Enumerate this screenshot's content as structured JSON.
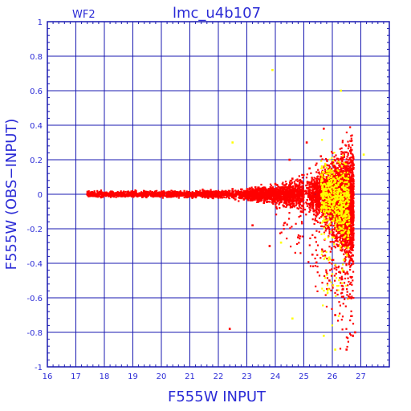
{
  "chart_data": {
    "type": "scatter",
    "title": "lmc_u4b107",
    "panel_label": "WF2",
    "xlabel": "F555W INPUT",
    "ylabel": "F555W (OBS−INPUT)",
    "xlim": [
      16,
      28
    ],
    "ylim": [
      -1,
      1
    ],
    "x_ticks": [
      16,
      17,
      18,
      19,
      20,
      21,
      22,
      23,
      24,
      25,
      26,
      27
    ],
    "y_ticks": [
      -1,
      -0.8,
      -0.6,
      -0.4,
      -0.2,
      0,
      0.2,
      0.4,
      0.6,
      0.8,
      1
    ],
    "grid": true,
    "series": [
      {
        "color": "#ff0000",
        "points": [
          [
            17.4,
            0.0
          ],
          [
            17.6,
            0.01
          ],
          [
            17.8,
            -0.01
          ],
          [
            18.0,
            0.0
          ],
          [
            18.3,
            0.01
          ],
          [
            18.6,
            -0.01
          ],
          [
            19.0,
            0.0
          ],
          [
            19.4,
            0.01
          ],
          [
            19.8,
            0.0
          ],
          [
            20.2,
            -0.01
          ],
          [
            20.6,
            0.01
          ],
          [
            21.0,
            -0.01
          ],
          [
            21.5,
            0.02
          ],
          [
            22.0,
            -0.02
          ],
          [
            22.5,
            0.03
          ],
          [
            22.9,
            -0.03
          ],
          [
            23.3,
            0.04
          ],
          [
            23.6,
            -0.05
          ],
          [
            24.0,
            0.06
          ],
          [
            24.3,
            -0.07
          ],
          [
            24.6,
            0.09
          ],
          [
            24.9,
            -0.1
          ],
          [
            25.2,
            0.15
          ],
          [
            25.4,
            -0.15
          ],
          [
            25.6,
            0.22
          ],
          [
            25.8,
            -0.2
          ],
          [
            26.0,
            0.18
          ],
          [
            26.2,
            -0.3
          ],
          [
            26.4,
            -0.45
          ],
          [
            26.6,
            -0.6
          ],
          [
            26.8,
            -0.8
          ],
          [
            25.9,
            -0.5
          ],
          [
            25.3,
            -0.35
          ],
          [
            24.8,
            -0.25
          ],
          [
            23.2,
            -0.18
          ],
          [
            22.4,
            -0.78
          ],
          [
            25.7,
            0.38
          ],
          [
            26.1,
            -0.7
          ],
          [
            26.5,
            -0.9
          ],
          [
            24.5,
            0.2
          ],
          [
            25.1,
            0.3
          ],
          [
            23.8,
            -0.3
          ]
        ]
      },
      {
        "color": "#ffff00",
        "points": [
          [
            25.8,
            0.05
          ],
          [
            26.0,
            -0.02
          ],
          [
            26.1,
            0.08
          ],
          [
            26.2,
            -0.1
          ],
          [
            26.3,
            -0.2
          ],
          [
            26.0,
            -0.25
          ],
          [
            25.9,
            0.12
          ],
          [
            26.4,
            -0.38
          ],
          [
            26.1,
            -0.9
          ],
          [
            24.6,
            -0.72
          ],
          [
            23.9,
            0.72
          ],
          [
            22.5,
            0.3
          ],
          [
            27.1,
            0.23
          ],
          [
            25.7,
            -0.82
          ],
          [
            26.3,
            0.6
          ],
          [
            24.2,
            -0.28
          ]
        ]
      }
    ]
  }
}
